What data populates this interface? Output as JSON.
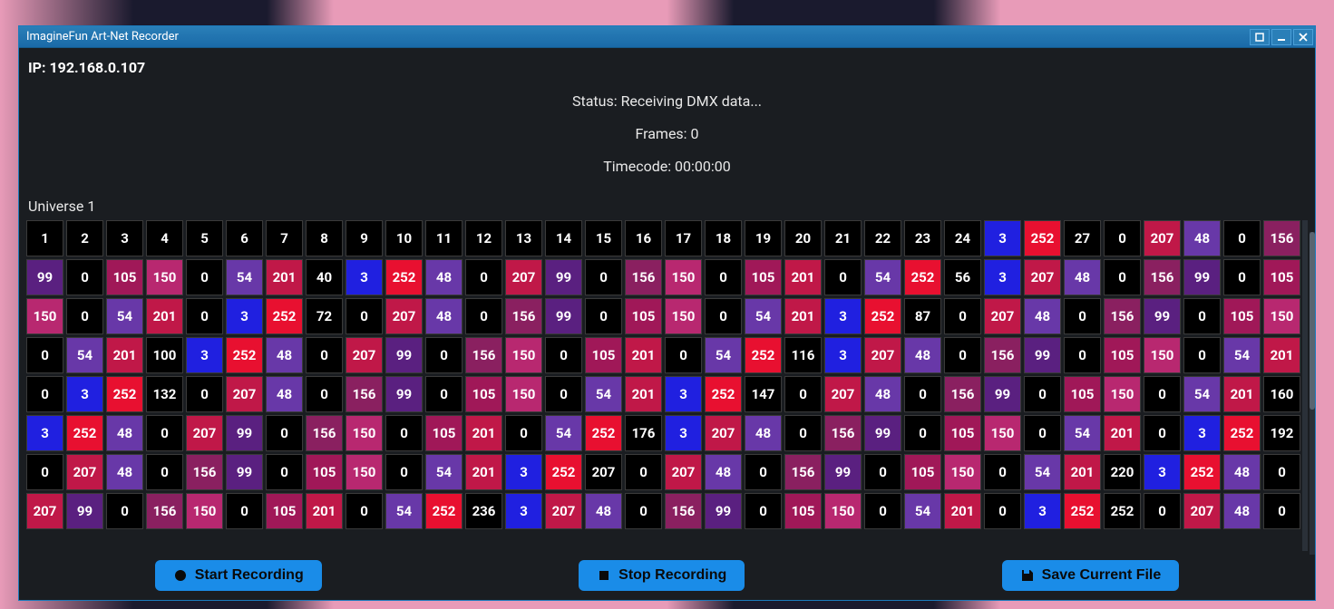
{
  "window": {
    "title": "ImagineFun Art-Net Recorder"
  },
  "header": {
    "ip_label_prefix": "IP: ",
    "ip": "192.168.0.107",
    "status_prefix": "Status: ",
    "status": "Receiving DMX data...",
    "frames_prefix": "Frames: ",
    "frames": "0",
    "timecode_prefix": "Timecode: ",
    "timecode": "00:00:00"
  },
  "universe": {
    "label": "Universe 1"
  },
  "colors": {
    "black": "#000000",
    "blue": "#2020e0",
    "red": "#e81030",
    "magenta": "#8a2060",
    "purple": "#5a2080",
    "violet": "#6838a8",
    "crimson": "#c01848",
    "wine": "#a01858",
    "maroon": "#901050",
    "pink": "#b82870"
  },
  "grid": {
    "columns": 32,
    "rows": [
      [
        [
          "1",
          "black"
        ],
        [
          "2",
          "black"
        ],
        [
          "3",
          "black"
        ],
        [
          "4",
          "black"
        ],
        [
          "5",
          "black"
        ],
        [
          "6",
          "black"
        ],
        [
          "7",
          "black"
        ],
        [
          "8",
          "black"
        ],
        [
          "9",
          "black"
        ],
        [
          "10",
          "black"
        ],
        [
          "11",
          "black"
        ],
        [
          "12",
          "black"
        ],
        [
          "13",
          "black"
        ],
        [
          "14",
          "black"
        ],
        [
          "15",
          "black"
        ],
        [
          "16",
          "black"
        ],
        [
          "17",
          "black"
        ],
        [
          "18",
          "black"
        ],
        [
          "19",
          "black"
        ],
        [
          "20",
          "black"
        ],
        [
          "21",
          "black"
        ],
        [
          "22",
          "black"
        ],
        [
          "23",
          "black"
        ],
        [
          "24",
          "black"
        ],
        [
          "3",
          "blue"
        ],
        [
          "252",
          "red"
        ],
        [
          "27",
          "black"
        ],
        [
          "0",
          "black"
        ],
        [
          "207",
          "crimson"
        ],
        [
          "48",
          "violet"
        ],
        [
          "0",
          "black"
        ],
        [
          "156",
          "magenta"
        ]
      ],
      [
        [
          "99",
          "purple"
        ],
        [
          "0",
          "black"
        ],
        [
          "105",
          "wine"
        ],
        [
          "150",
          "pink"
        ],
        [
          "0",
          "black"
        ],
        [
          "54",
          "violet"
        ],
        [
          "201",
          "crimson"
        ],
        [
          "40",
          "black"
        ],
        [
          "3",
          "blue"
        ],
        [
          "252",
          "red"
        ],
        [
          "48",
          "violet"
        ],
        [
          "0",
          "black"
        ],
        [
          "207",
          "crimson"
        ],
        [
          "99",
          "purple"
        ],
        [
          "0",
          "black"
        ],
        [
          "156",
          "magenta"
        ],
        [
          "150",
          "pink"
        ],
        [
          "0",
          "black"
        ],
        [
          "105",
          "wine"
        ],
        [
          "201",
          "crimson"
        ],
        [
          "0",
          "black"
        ],
        [
          "54",
          "violet"
        ],
        [
          "252",
          "red"
        ],
        [
          "56",
          "black"
        ],
        [
          "3",
          "blue"
        ],
        [
          "207",
          "crimson"
        ],
        [
          "48",
          "violet"
        ],
        [
          "0",
          "black"
        ],
        [
          "156",
          "magenta"
        ],
        [
          "99",
          "purple"
        ],
        [
          "0",
          "black"
        ],
        [
          "105",
          "wine"
        ]
      ],
      [
        [
          "150",
          "pink"
        ],
        [
          "0",
          "black"
        ],
        [
          "54",
          "violet"
        ],
        [
          "201",
          "crimson"
        ],
        [
          "0",
          "black"
        ],
        [
          "3",
          "blue"
        ],
        [
          "252",
          "red"
        ],
        [
          "72",
          "black"
        ],
        [
          "0",
          "black"
        ],
        [
          "207",
          "crimson"
        ],
        [
          "48",
          "violet"
        ],
        [
          "0",
          "black"
        ],
        [
          "156",
          "magenta"
        ],
        [
          "99",
          "purple"
        ],
        [
          "0",
          "black"
        ],
        [
          "105",
          "wine"
        ],
        [
          "150",
          "pink"
        ],
        [
          "0",
          "black"
        ],
        [
          "54",
          "violet"
        ],
        [
          "201",
          "crimson"
        ],
        [
          "3",
          "blue"
        ],
        [
          "252",
          "red"
        ],
        [
          "87",
          "black"
        ],
        [
          "0",
          "black"
        ],
        [
          "207",
          "crimson"
        ],
        [
          "48",
          "violet"
        ],
        [
          "0",
          "black"
        ],
        [
          "156",
          "magenta"
        ],
        [
          "99",
          "purple"
        ],
        [
          "0",
          "black"
        ],
        [
          "105",
          "wine"
        ],
        [
          "150",
          "pink"
        ]
      ],
      [
        [
          "0",
          "black"
        ],
        [
          "54",
          "violet"
        ],
        [
          "201",
          "crimson"
        ],
        [
          "100",
          "black"
        ],
        [
          "3",
          "blue"
        ],
        [
          "252",
          "red"
        ],
        [
          "48",
          "violet"
        ],
        [
          "0",
          "black"
        ],
        [
          "207",
          "crimson"
        ],
        [
          "99",
          "purple"
        ],
        [
          "0",
          "black"
        ],
        [
          "156",
          "magenta"
        ],
        [
          "150",
          "pink"
        ],
        [
          "0",
          "black"
        ],
        [
          "105",
          "wine"
        ],
        [
          "201",
          "crimson"
        ],
        [
          "0",
          "black"
        ],
        [
          "54",
          "violet"
        ],
        [
          "252",
          "red"
        ],
        [
          "116",
          "black"
        ],
        [
          "3",
          "blue"
        ],
        [
          "207",
          "crimson"
        ],
        [
          "48",
          "violet"
        ],
        [
          "0",
          "black"
        ],
        [
          "156",
          "magenta"
        ],
        [
          "99",
          "purple"
        ],
        [
          "0",
          "black"
        ],
        [
          "105",
          "wine"
        ],
        [
          "150",
          "pink"
        ],
        [
          "0",
          "black"
        ],
        [
          "54",
          "violet"
        ],
        [
          "201",
          "crimson"
        ]
      ],
      [
        [
          "0",
          "black"
        ],
        [
          "3",
          "blue"
        ],
        [
          "252",
          "red"
        ],
        [
          "132",
          "black"
        ],
        [
          "0",
          "black"
        ],
        [
          "207",
          "crimson"
        ],
        [
          "48",
          "violet"
        ],
        [
          "0",
          "black"
        ],
        [
          "156",
          "magenta"
        ],
        [
          "99",
          "purple"
        ],
        [
          "0",
          "black"
        ],
        [
          "105",
          "wine"
        ],
        [
          "150",
          "pink"
        ],
        [
          "0",
          "black"
        ],
        [
          "54",
          "violet"
        ],
        [
          "201",
          "crimson"
        ],
        [
          "3",
          "blue"
        ],
        [
          "252",
          "red"
        ],
        [
          "147",
          "black"
        ],
        [
          "0",
          "black"
        ],
        [
          "207",
          "crimson"
        ],
        [
          "48",
          "violet"
        ],
        [
          "0",
          "black"
        ],
        [
          "156",
          "magenta"
        ],
        [
          "99",
          "purple"
        ],
        [
          "0",
          "black"
        ],
        [
          "105",
          "wine"
        ],
        [
          "150",
          "pink"
        ],
        [
          "0",
          "black"
        ],
        [
          "54",
          "violet"
        ],
        [
          "201",
          "crimson"
        ],
        [
          "160",
          "black"
        ]
      ],
      [
        [
          "3",
          "blue"
        ],
        [
          "252",
          "red"
        ],
        [
          "48",
          "violet"
        ],
        [
          "0",
          "black"
        ],
        [
          "207",
          "crimson"
        ],
        [
          "99",
          "purple"
        ],
        [
          "0",
          "black"
        ],
        [
          "156",
          "magenta"
        ],
        [
          "150",
          "pink"
        ],
        [
          "0",
          "black"
        ],
        [
          "105",
          "wine"
        ],
        [
          "201",
          "crimson"
        ],
        [
          "0",
          "black"
        ],
        [
          "54",
          "violet"
        ],
        [
          "252",
          "red"
        ],
        [
          "176",
          "black"
        ],
        [
          "3",
          "blue"
        ],
        [
          "207",
          "crimson"
        ],
        [
          "48",
          "violet"
        ],
        [
          "0",
          "black"
        ],
        [
          "156",
          "magenta"
        ],
        [
          "99",
          "purple"
        ],
        [
          "0",
          "black"
        ],
        [
          "105",
          "wine"
        ],
        [
          "150",
          "pink"
        ],
        [
          "0",
          "black"
        ],
        [
          "54",
          "violet"
        ],
        [
          "201",
          "crimson"
        ],
        [
          "0",
          "black"
        ],
        [
          "3",
          "blue"
        ],
        [
          "252",
          "red"
        ],
        [
          "192",
          "black"
        ]
      ],
      [
        [
          "0",
          "black"
        ],
        [
          "207",
          "crimson"
        ],
        [
          "48",
          "violet"
        ],
        [
          "0",
          "black"
        ],
        [
          "156",
          "magenta"
        ],
        [
          "99",
          "purple"
        ],
        [
          "0",
          "black"
        ],
        [
          "105",
          "wine"
        ],
        [
          "150",
          "pink"
        ],
        [
          "0",
          "black"
        ],
        [
          "54",
          "violet"
        ],
        [
          "201",
          "crimson"
        ],
        [
          "3",
          "blue"
        ],
        [
          "252",
          "red"
        ],
        [
          "207",
          "black"
        ],
        [
          "0",
          "black"
        ],
        [
          "207",
          "crimson"
        ],
        [
          "48",
          "violet"
        ],
        [
          "0",
          "black"
        ],
        [
          "156",
          "magenta"
        ],
        [
          "99",
          "purple"
        ],
        [
          "0",
          "black"
        ],
        [
          "105",
          "wine"
        ],
        [
          "150",
          "pink"
        ],
        [
          "0",
          "black"
        ],
        [
          "54",
          "violet"
        ],
        [
          "201",
          "crimson"
        ],
        [
          "220",
          "black"
        ],
        [
          "3",
          "blue"
        ],
        [
          "252",
          "red"
        ],
        [
          "48",
          "violet"
        ],
        [
          "0",
          "black"
        ]
      ],
      [
        [
          "207",
          "crimson"
        ],
        [
          "99",
          "purple"
        ],
        [
          "0",
          "black"
        ],
        [
          "156",
          "magenta"
        ],
        [
          "150",
          "pink"
        ],
        [
          "0",
          "black"
        ],
        [
          "105",
          "wine"
        ],
        [
          "201",
          "crimson"
        ],
        [
          "0",
          "black"
        ],
        [
          "54",
          "violet"
        ],
        [
          "252",
          "red"
        ],
        [
          "236",
          "black"
        ],
        [
          "3",
          "blue"
        ],
        [
          "207",
          "crimson"
        ],
        [
          "48",
          "violet"
        ],
        [
          "0",
          "black"
        ],
        [
          "156",
          "magenta"
        ],
        [
          "99",
          "purple"
        ],
        [
          "0",
          "black"
        ],
        [
          "105",
          "wine"
        ],
        [
          "150",
          "pink"
        ],
        [
          "0",
          "black"
        ],
        [
          "54",
          "violet"
        ],
        [
          "201",
          "crimson"
        ],
        [
          "0",
          "black"
        ],
        [
          "3",
          "blue"
        ],
        [
          "252",
          "red"
        ],
        [
          "252",
          "black"
        ],
        [
          "0",
          "black"
        ],
        [
          "207",
          "crimson"
        ],
        [
          "48",
          "violet"
        ],
        [
          "0",
          "black"
        ]
      ]
    ]
  },
  "buttons": {
    "start": "Start Recording",
    "stop": "Stop Recording",
    "save": "Save Current File"
  }
}
